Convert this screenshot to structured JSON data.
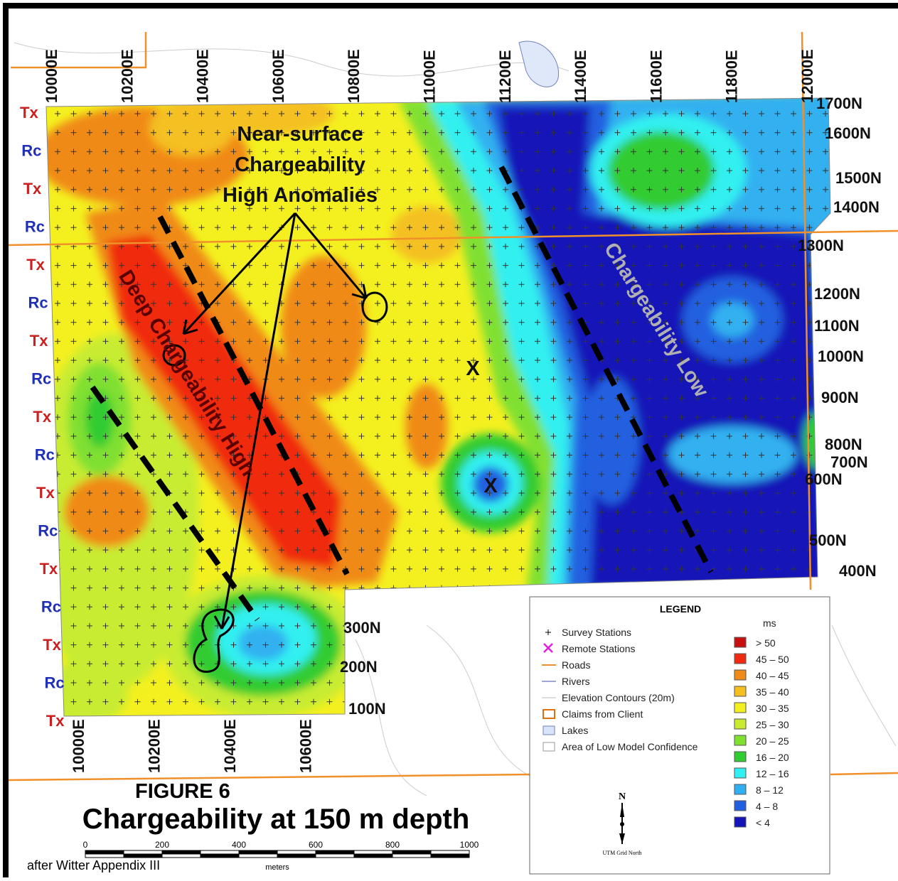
{
  "map": {
    "top_eastings": [
      "10000E",
      "10200E",
      "10400E",
      "10600E",
      "10800E",
      "11000E",
      "11200E",
      "11400E",
      "11600E",
      "11800E",
      "12000E"
    ],
    "bottom_eastings": [
      "10000E",
      "10200E",
      "10400E",
      "10600E"
    ],
    "northings": [
      "1700N",
      "1600N",
      "1500N",
      "1400N",
      "1300N",
      "1200N",
      "1100N",
      "1000N",
      "900N",
      "800N",
      "700N",
      "600N",
      "500N",
      "400N",
      "300N",
      "200N",
      "100N"
    ],
    "line_types": [
      "Tx",
      "Rc",
      "Tx",
      "Rc",
      "Tx",
      "Rc",
      "Tx",
      "Rc",
      "Tx",
      "Rc",
      "Tx",
      "Rc",
      "Tx",
      "Rc",
      "Tx",
      "Rc",
      "Tx"
    ],
    "annotations": {
      "near_surface": [
        "Near-surface",
        "Chargeability",
        "High Anomalies"
      ],
      "deep": "Deep Chargeability High",
      "low": "Chargeability Low",
      "remote_1": "X",
      "remote_2": "X"
    }
  },
  "legend": {
    "title": "LEGEND",
    "unit": "ms",
    "items": [
      "Survey Stations",
      "Remote Stations",
      "Roads",
      "Rivers",
      "Elevation Contours (20m)",
      "Claims from Client",
      "Lakes",
      "Area of Low Model Confidence"
    ],
    "scale": [
      {
        "label": "> 50",
        "color": "#c81010"
      },
      {
        "label": "45 – 50",
        "color": "#f02a10"
      },
      {
        "label": "40 – 45",
        "color": "#f08a18"
      },
      {
        "label": "35 – 40",
        "color": "#f4c020"
      },
      {
        "label": "30 – 35",
        "color": "#f4f020"
      },
      {
        "label": "25 – 30",
        "color": "#c8ec30"
      },
      {
        "label": "20 – 25",
        "color": "#80e030"
      },
      {
        "label": "16 – 20",
        "color": "#30cc30"
      },
      {
        "label": "12 – 16",
        "color": "#30f0f0"
      },
      {
        "label": "8 – 12",
        "color": "#30b0f0"
      },
      {
        "label": "4 – 8",
        "color": "#2060e0"
      },
      {
        "label": "< 4",
        "color": "#1414b8"
      }
    ],
    "north": "N",
    "north_note": "UTM Grid North"
  },
  "figure": {
    "number": "FIGURE 6",
    "title": "Chargeability at 150 m depth",
    "scale_ticks": [
      0,
      200,
      400,
      600,
      800,
      1000
    ],
    "scale_unit": "meters",
    "credit": "after Witter Appendix III"
  }
}
